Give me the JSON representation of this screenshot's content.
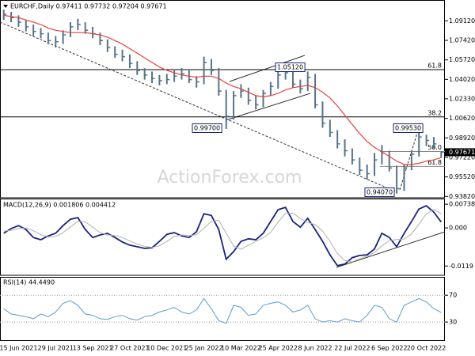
{
  "chart_data": [
    {
      "type": "ohlc",
      "title": "EURCHF,Daily 0.97411 0.97732 0.97204 0.97671",
      "watermark": "ActionForex.com",
      "color": "#557489",
      "categories": [
        null,
        null,
        "15 Jun 2021",
        null,
        null,
        null,
        null,
        "29 Jul 2021",
        null,
        null,
        null,
        null,
        "13 Sep 2021",
        null,
        null,
        null,
        null,
        "27 Oct 2021",
        null,
        null,
        null,
        null,
        "10 Dec 2021",
        null,
        null,
        null,
        null,
        "25 Jan 2022",
        null,
        null,
        null,
        null,
        "10 Mar 2022",
        null,
        null,
        null,
        null,
        "25 Apr 2022",
        null,
        null,
        null,
        null,
        "8 Jun 2022",
        null,
        null,
        null,
        null,
        "22 Jul 2022",
        null,
        null,
        null,
        null,
        "6 Sep 2022",
        null,
        null,
        null,
        null,
        "20 Oct 2022",
        null,
        null
      ],
      "high": [
        1.101,
        1.099,
        1.096,
        1.092,
        1.088,
        1.085,
        1.081,
        1.078,
        1.083,
        1.09,
        1.093,
        1.09,
        1.086,
        1.081,
        1.075,
        1.069,
        1.066,
        1.062,
        1.056,
        1.05,
        1.047,
        1.044,
        1.045,
        1.048,
        1.05,
        1.048,
        1.043,
        1.06,
        1.058,
        1.05,
        1.031,
        1.03,
        1.036,
        1.033,
        1.026,
        1.031,
        1.038,
        1.049,
        1.0512,
        1.047,
        1.04,
        1.047,
        1.045,
        1.021,
        1.005,
        0.996,
        0.988,
        0.98,
        0.972,
        0.966,
        0.976,
        0.983,
        0.978,
        0.965,
        0.966,
        0.978,
        0.9953,
        0.992,
        0.99,
        0.97732
      ],
      "low": [
        1.092,
        1.09,
        1.086,
        1.082,
        1.078,
        1.076,
        1.071,
        1.068,
        1.071,
        1.077,
        1.083,
        1.08,
        1.076,
        1.07,
        1.064,
        1.059,
        1.056,
        1.05,
        1.044,
        1.04,
        1.037,
        1.035,
        1.036,
        1.038,
        1.04,
        1.037,
        1.033,
        1.036,
        1.044,
        1.026,
        0.997,
        1.005,
        1.024,
        1.018,
        1.014,
        1.016,
        1.026,
        1.032,
        1.04,
        1.033,
        1.028,
        1.03,
        1.015,
        0.998,
        0.99,
        0.98,
        0.973,
        0.966,
        0.957,
        0.953,
        0.956,
        0.966,
        0.96,
        0.9407,
        0.943,
        0.961,
        0.973,
        0.982,
        0.98,
        0.97204
      ],
      "close": [
        1.097,
        1.094,
        1.09,
        1.086,
        1.082,
        1.08,
        1.074,
        1.073,
        1.079,
        1.086,
        1.088,
        1.083,
        1.08,
        1.074,
        1.068,
        1.062,
        1.06,
        1.054,
        1.048,
        1.044,
        1.041,
        1.039,
        1.04,
        1.043,
        1.045,
        1.04,
        1.038,
        1.055,
        1.048,
        1.03,
        1.008,
        1.026,
        1.03,
        1.022,
        1.018,
        1.028,
        1.034,
        1.044,
        1.046,
        1.036,
        1.032,
        1.042,
        1.018,
        1.002,
        0.994,
        0.984,
        0.978,
        0.97,
        0.961,
        0.958,
        0.97,
        0.976,
        0.963,
        0.945,
        0.963,
        0.975,
        0.99,
        0.987,
        0.984,
        0.97671
      ],
      "overlay": {
        "color": "#e8413a",
        "values": [
          1.096,
          1.095,
          1.094,
          1.092,
          1.09,
          1.088,
          1.085,
          1.083,
          1.082,
          1.081,
          1.081,
          1.081,
          1.08,
          1.079,
          1.077,
          1.074,
          1.071,
          1.067,
          1.063,
          1.059,
          1.055,
          1.051,
          1.048,
          1.046,
          1.044,
          1.043,
          1.042,
          1.043,
          1.043,
          1.041,
          1.037,
          1.034,
          1.032,
          1.029,
          1.026,
          1.025,
          1.026,
          1.028,
          1.031,
          1.033,
          1.034,
          1.035,
          1.033,
          1.029,
          1.024,
          1.017,
          1.009,
          1.001,
          0.993,
          0.986,
          0.981,
          0.977,
          0.973,
          0.969,
          0.966,
          0.966,
          0.967,
          0.969,
          0.97,
          0.972
        ]
      },
      "levels": [
        {
          "label": "61.8",
          "value": 1.0487
        },
        {
          "label": "38.2",
          "value": 1.0075
        },
        {
          "label": "50.0",
          "value": 0.9773
        },
        {
          "label": "61.8",
          "value": 0.9643
        }
      ],
      "annotations": [
        "0.99700",
        "1.05120",
        "0.99530",
        "0.94070"
      ],
      "ylim": [
        0.937,
        1.108
      ],
      "yticks": [
        {
          "value": 1.0912,
          "label": "1.09120"
        },
        {
          "value": 1.0742,
          "label": "1.07420"
        },
        {
          "value": 1.0572,
          "label": "1.05720"
        },
        {
          "value": 1.0402,
          "label": "1.04020"
        },
        {
          "value": 1.0233,
          "label": "1.02330"
        },
        {
          "value": 1.0062,
          "label": "1.00620"
        },
        {
          "value": 0.9892,
          "label": "0.98920"
        },
        {
          "value": 0.9722,
          "label": "0.97220"
        },
        {
          "value": 0.9552,
          "label": "0.95520"
        },
        {
          "value": 0.9382,
          "label": "0.93820"
        }
      ]
    },
    {
      "type": "line",
      "title": "MACD(12,26,9) 0.001806 0.004412",
      "series": [
        {
          "color": "#1a237e",
          "values": [
            -0.0017,
            -0.0002,
            0.0007,
            -0.0005,
            -0.003,
            -0.0037,
            -0.0025,
            -0.0017,
            0.0007,
            0.0027,
            0.0032,
            -0.0005,
            -0.003,
            -0.0022,
            -0.0017,
            -0.003,
            -0.0044,
            -0.0054,
            -0.0059,
            -0.0064,
            -0.0062,
            -0.0042,
            -0.002,
            -0.0015,
            -0.0025,
            -0.003,
            -0.0012,
            0.0044,
            0.0039,
            -0.0005,
            -0.0098,
            -0.0074,
            -0.0042,
            -0.0034,
            -0.0037,
            -0.0017,
            0.002,
            0.0057,
            0.0064,
            0.002,
            0.0002,
            0.003,
            -0.0005,
            -0.0042,
            -0.0084,
            -0.0118,
            -0.0113,
            -0.0093,
            -0.0086,
            -0.0084,
            -0.0066,
            -0.0017,
            -0.003,
            -0.0059,
            -0.0017,
            0.002,
            0.0059,
            0.0069,
            0.0049,
            0.001806
          ]
        },
        {
          "color": "#b0b0b0",
          "values": [
            -0.001,
            -0.0008,
            -0.0002,
            0.0,
            -0.0009,
            -0.0021,
            -0.0028,
            -0.0027,
            -0.0015,
            0.0003,
            0.002,
            0.0019,
            0.0002,
            -0.0015,
            -0.0022,
            -0.0024,
            -0.003,
            -0.0041,
            -0.005,
            -0.0058,
            -0.0061,
            -0.0056,
            -0.0042,
            -0.0027,
            -0.0022,
            -0.0024,
            -0.0021,
            -0.0001,
            0.002,
            0.0024,
            -0.0017,
            -0.0056,
            -0.0067,
            -0.0054,
            -0.0042,
            -0.0031,
            -0.0014,
            0.0018,
            0.0045,
            0.0046,
            0.0029,
            0.0017,
            0.001,
            -0.001,
            -0.0042,
            -0.008,
            -0.0102,
            -0.0106,
            -0.0097,
            -0.0088,
            -0.0077,
            -0.0056,
            -0.004,
            -0.0036,
            -0.0035,
            -0.0019,
            0.0012,
            0.0044,
            0.0058,
            0.004412
          ]
        }
      ],
      "ylim": [
        -0.0148,
        0.0089
      ],
      "yticks": [
        0.007384,
        {
          "value": 0,
          "label": "0.000"
        },
        -0.0119
      ]
    },
    {
      "type": "line",
      "title": "RSI(14) 44.4490",
      "series": [
        {
          "color": "#5b9bd5",
          "values": [
            50,
            42,
            40,
            38,
            35,
            42,
            38,
            45,
            58,
            62,
            55,
            42,
            40,
            35,
            34,
            38,
            40,
            35,
            33,
            38,
            40,
            45,
            48,
            52,
            45,
            42,
            48,
            65,
            50,
            32,
            28,
            55,
            52,
            40,
            42,
            55,
            58,
            60,
            55,
            45,
            48,
            55,
            35,
            30,
            32,
            30,
            35,
            32,
            30,
            40,
            55,
            52,
            35,
            30,
            55,
            60,
            65,
            60,
            50,
            44.449
          ]
        }
      ],
      "ylim": [
        3,
        95
      ],
      "yticks": [
        70,
        30
      ]
    }
  ]
}
